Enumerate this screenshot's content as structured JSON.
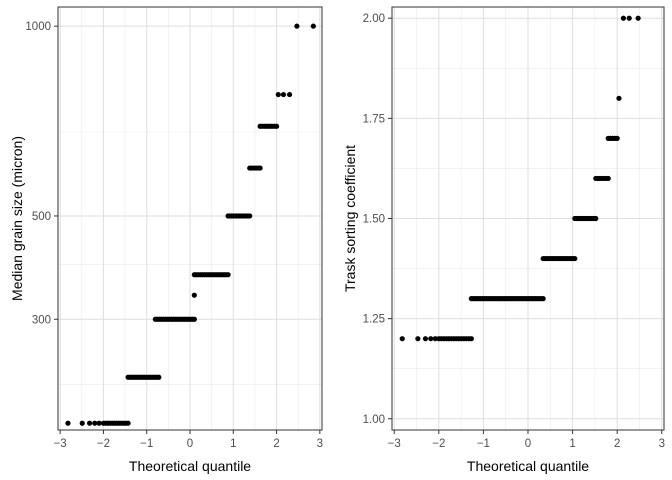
{
  "chart_data": [
    {
      "type": "scatter",
      "xlabel": "Theoretical quantile",
      "ylabel": "Median grain size (micron)",
      "xlim": [
        -3.05,
        3.05
      ],
      "ylim": [
        142,
        1060
      ],
      "x_ticks": [
        -3,
        -2,
        -1,
        0,
        1,
        2,
        3
      ],
      "y_ticks": [
        300,
        500,
        1000
      ],
      "y_minor_ticks": [
        200,
        400,
        700
      ],
      "y_scale": "sqrt",
      "grid": true,
      "point_color": "#000000",
      "segments": [
        {
          "y": 150,
          "x": [
            -2.82,
            -2.49,
            -2.32,
            -2.2,
            -2.1
          ]
        },
        {
          "y": 150,
          "x_from": -2.0,
          "x_to": -1.43,
          "n": 12
        },
        {
          "y": 210,
          "x_from": -1.43,
          "x_to": -0.72,
          "n": 16
        },
        {
          "y": 300,
          "x_from": -0.8,
          "x_to": 0.1,
          "n": 20
        },
        {
          "y": 342,
          "x": [
            0.1
          ]
        },
        {
          "y": 380,
          "x_from": 0.1,
          "x_to": 0.88,
          "n": 18
        },
        {
          "y": 500,
          "x_from": 0.88,
          "x_to": 1.38,
          "n": 12
        },
        {
          "y": 610,
          "x_from": 1.38,
          "x_to": 1.62,
          "n": 6
        },
        {
          "y": 715,
          "x_from": 1.62,
          "x_to": 2.0,
          "n": 8
        },
        {
          "y": 800,
          "x": [
            2.04,
            2.16,
            2.3
          ]
        },
        {
          "y": 1000,
          "x": [
            2.47,
            2.85
          ]
        }
      ]
    },
    {
      "type": "scatter",
      "xlabel": "Theoretical quantile",
      "ylabel": "Trask sorting coefficient",
      "xlim": [
        -3.05,
        3.05
      ],
      "ylim": [
        0.972,
        2.028
      ],
      "x_ticks": [
        -3,
        -2,
        -1,
        0,
        1,
        2,
        3
      ],
      "y_ticks": [
        1.0,
        1.25,
        1.5,
        1.75,
        2.0
      ],
      "y_tick_labels": [
        "1.00",
        "1.25",
        "1.50",
        "1.75",
        "2.00"
      ],
      "y_minor_ticks": [
        1.125,
        1.375,
        1.625,
        1.875
      ],
      "y_scale": "linear",
      "grid": true,
      "point_color": "#000000",
      "segments": [
        {
          "y": 1.2,
          "x": [
            -2.82,
            -2.47,
            -2.3,
            -2.18,
            -2.08
          ]
        },
        {
          "y": 1.2,
          "x_from": -2.0,
          "x_to": -1.27,
          "n": 14
        },
        {
          "y": 1.3,
          "x_from": -1.27,
          "x_to": 0.34,
          "n": 40
        },
        {
          "y": 1.4,
          "x_from": 0.34,
          "x_to": 1.05,
          "n": 18
        },
        {
          "y": 1.5,
          "x_from": 1.05,
          "x_to": 1.52,
          "n": 12
        },
        {
          "y": 1.6,
          "x_from": 1.52,
          "x_to": 1.8,
          "n": 7
        },
        {
          "y": 1.7,
          "x_from": 1.8,
          "x_to": 2.0,
          "n": 5
        },
        {
          "y": 1.8,
          "x": [
            2.04
          ]
        },
        {
          "y": 2.0,
          "x": [
            2.14,
            2.27,
            2.47
          ]
        }
      ]
    }
  ]
}
